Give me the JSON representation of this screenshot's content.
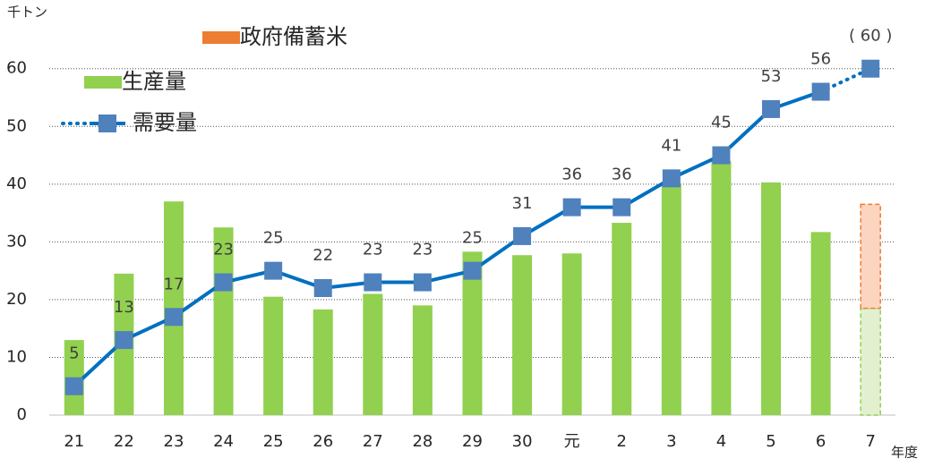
{
  "chart_data": {
    "type": "bar",
    "y_label": "千トン",
    "x_label": "年度",
    "categories": [
      "21",
      "22",
      "23",
      "24",
      "25",
      "26",
      "27",
      "28",
      "29",
      "30",
      "元",
      "2",
      "3",
      "4",
      "5",
      "6",
      "7"
    ],
    "series": [
      {
        "name": "政府備蓄米",
        "color": "#ED7D31",
        "stack": "top",
        "values": [
          null,
          null,
          null,
          null,
          null,
          null,
          null,
          null,
          null,
          null,
          null,
          null,
          null,
          null,
          null,
          null,
          18
        ]
      },
      {
        "name": "生産量",
        "color": "#92D050",
        "stack": "bottom",
        "values": [
          13,
          24.5,
          37,
          32.5,
          20.5,
          18.3,
          21,
          19,
          28.3,
          27.7,
          28,
          33.3,
          40,
          44,
          40.3,
          31.7,
          18.5
        ]
      },
      {
        "name": "需要量",
        "color": "#0070C0",
        "type": "line",
        "marker_color": "#4F81BD",
        "values": [
          5,
          13,
          17,
          23,
          25,
          22,
          23,
          23,
          25,
          31,
          36,
          36,
          41,
          45,
          53,
          56,
          60
        ],
        "value_labels": [
          "5",
          "13",
          "17",
          "23",
          "25",
          "22",
          "23",
          "23",
          "25",
          "31",
          "36",
          "36",
          "41",
          "45",
          "53",
          "56",
          "( 60 )"
        ]
      }
    ],
    "ylim": [
      0,
      66
    ],
    "yticks": [
      0,
      10,
      20,
      30,
      40,
      50,
      60
    ],
    "grid": true,
    "legend": "top-left"
  }
}
